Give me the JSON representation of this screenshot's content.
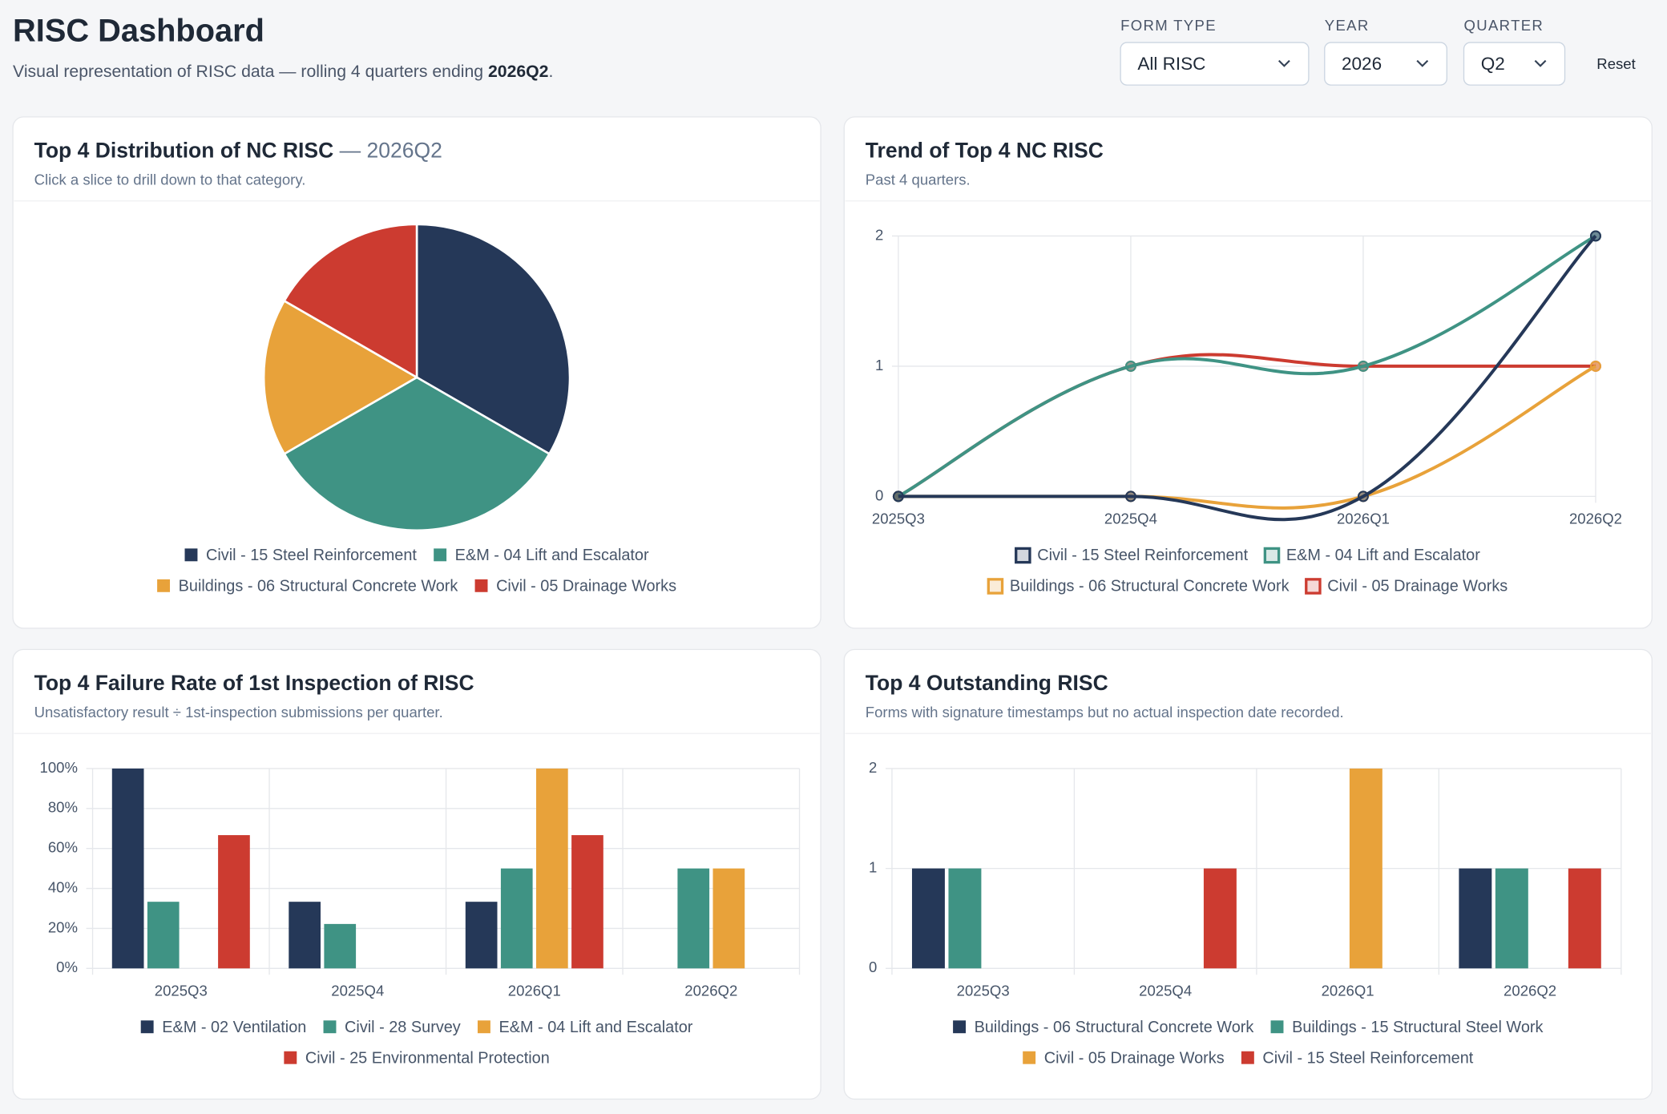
{
  "header": {
    "title": "RISC Dashboard",
    "subtitle": "Visual representation of RISC data — rolling 4 quarters ending ",
    "subtitle_period": "2026Q2",
    "subtitle_end": "."
  },
  "filters": [
    {
      "label": "FORM TYPE",
      "value": "All RISC"
    },
    {
      "label": "YEAR",
      "value": "2026"
    },
    {
      "label": "QUARTER",
      "value": "Q2"
    }
  ],
  "reset": "Reset",
  "chart_data": [
    {
      "type": "pie",
      "title": "Top 4 Distribution of NC RISC",
      "title_suffix": " — 2026Q2",
      "subtitle": "Click a slice to drill down to that category.",
      "categories": [
        "Civil - 15 Steel Reinforcement",
        "E&M - 04 Lift and Escalator",
        "Buildings - 06 Structural Concrete Work",
        "Civil - 05 Drainage Works"
      ],
      "values": [
        2,
        2,
        1,
        1
      ],
      "colors": [
        "#253858",
        "#3f9384",
        "#e8a23a",
        "#cc3b30"
      ]
    },
    {
      "type": "line",
      "title": "Trend of Top 4 NC RISC",
      "subtitle": "Past 4 quarters.",
      "categories": [
        "2025Q3",
        "2025Q4",
        "2026Q1",
        "2026Q2"
      ],
      "series": [
        {
          "name": "Civil - 15 Steel Reinforcement",
          "color": "#253858",
          "values": [
            0,
            0,
            0,
            2
          ]
        },
        {
          "name": "E&M - 04 Lift and Escalator",
          "color": "#3f9384",
          "values": [
            0,
            1,
            1,
            2
          ]
        },
        {
          "name": "Buildings - 06 Structural Concrete Work",
          "color": "#e8a23a",
          "values": [
            0,
            0,
            0,
            1
          ]
        },
        {
          "name": "Civil - 05 Drainage Works",
          "color": "#cc3b30",
          "values": [
            0,
            1,
            1,
            1
          ]
        }
      ],
      "ylim": [
        0,
        2
      ],
      "yticks": [
        0,
        1,
        2
      ],
      "grid": true
    },
    {
      "type": "bar",
      "title": "Top 4 Failure Rate of 1st Inspection of RISC",
      "subtitle": "Unsatisfactory result ÷ 1st-inspection submissions per quarter.",
      "categories": [
        "2025Q3",
        "2025Q4",
        "2026Q1",
        "2026Q2"
      ],
      "series": [
        {
          "name": "E&M - 02 Ventilation",
          "color": "#253858",
          "values": [
            100,
            33.33,
            33.33,
            0
          ]
        },
        {
          "name": "Civil - 28 Survey",
          "color": "#3f9384",
          "values": [
            33.33,
            22.22,
            50,
            50
          ]
        },
        {
          "name": "E&M - 04 Lift and Escalator",
          "color": "#e8a23a",
          "values": [
            0,
            0,
            100,
            50
          ]
        },
        {
          "name": "Civil - 25 Environmental Protection",
          "color": "#cc3b30",
          "values": [
            66.67,
            0,
            66.67,
            0
          ]
        }
      ],
      "ylim": [
        0,
        100
      ],
      "yticks": [
        {
          "value": 0,
          "label": "0%"
        },
        {
          "value": 20,
          "label": "20%"
        },
        {
          "value": 40,
          "label": "40%"
        },
        {
          "value": 60,
          "label": "60%"
        },
        {
          "value": 80,
          "label": "80%"
        },
        {
          "value": 100,
          "label": "100%"
        }
      ],
      "grid": true
    },
    {
      "type": "bar",
      "title": "Top 4 Outstanding RISC",
      "subtitle": "Forms with signature timestamps but no actual inspection date recorded.",
      "categories": [
        "2025Q3",
        "2025Q4",
        "2026Q1",
        "2026Q2"
      ],
      "series": [
        {
          "name": "Buildings - 06 Structural Concrete Work",
          "color": "#253858",
          "values": [
            1,
            0,
            0,
            1
          ]
        },
        {
          "name": "Buildings - 15 Structural Steel Work",
          "color": "#3f9384",
          "values": [
            1,
            0,
            0,
            1
          ]
        },
        {
          "name": "Civil - 05 Drainage Works",
          "color": "#e8a23a",
          "values": [
            0,
            0,
            2,
            0
          ]
        },
        {
          "name": "Civil - 15 Steel Reinforcement",
          "color": "#cc3b30",
          "values": [
            0,
            1,
            0,
            1
          ]
        }
      ],
      "ylim": [
        0,
        2
      ],
      "yticks": [
        0,
        1,
        2
      ],
      "grid": true
    }
  ]
}
